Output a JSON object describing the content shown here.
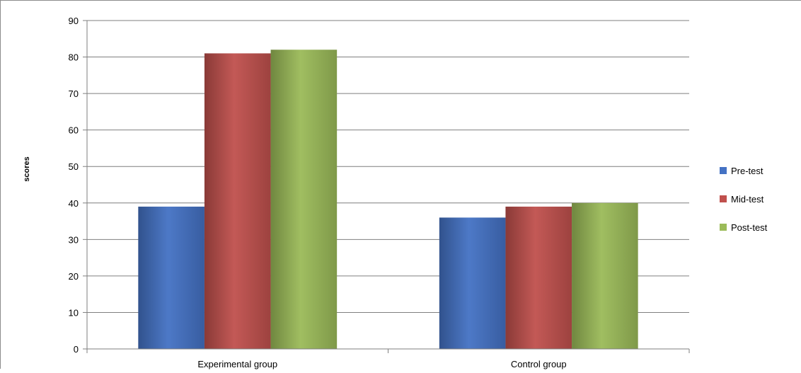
{
  "chart_data": {
    "type": "bar",
    "title": "",
    "xlabel": "",
    "ylabel": "scores",
    "ylim": [
      0,
      90
    ],
    "yticks": [
      0,
      10,
      20,
      30,
      40,
      50,
      60,
      70,
      80,
      90
    ],
    "grid": true,
    "legend_position": "right",
    "categories": [
      "Experimental group",
      "Control group"
    ],
    "series": [
      {
        "name": "Pre-test",
        "color": "#4472C4",
        "values": [
          39,
          36
        ]
      },
      {
        "name": "Mid-test",
        "color": "#C0504D",
        "values": [
          81,
          39
        ]
      },
      {
        "name": "Post-test",
        "color": "#9BBB59",
        "values": [
          82,
          40
        ]
      }
    ]
  }
}
